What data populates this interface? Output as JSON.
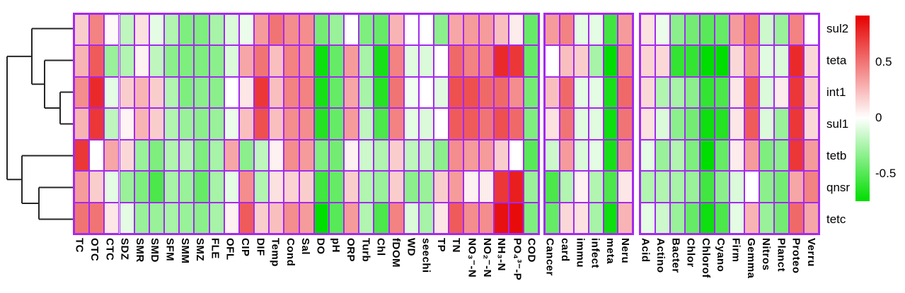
{
  "chart_data": {
    "type": "heatmap",
    "title": "",
    "rows": [
      "sul2",
      "teta",
      "int1",
      "sul1",
      "tetb",
      "qnsr",
      "tetc"
    ],
    "legend_position": "right",
    "colorbar": {
      "ticks": [
        "0.5",
        "0",
        "-0.5"
      ],
      "tick_values": [
        0.5,
        0,
        -0.5
      ],
      "max": 0.92,
      "min": -0.75,
      "color_positive": "#e60000",
      "color_zero": "#ffffff",
      "color_negative": "#00dd00"
    },
    "grid_border_color": "#a429f0",
    "dendrogram": {
      "line_color": "#262626",
      "nodes": [
        {
          "join": [
            "int1",
            "sul1"
          ],
          "x": 85
        },
        {
          "join": [
            "teta",
            "@0"
          ],
          "x": 63
        },
        {
          "join": [
            "sul2",
            "@1"
          ],
          "x": 45
        },
        {
          "join": [
            "qnsr",
            "tetc"
          ],
          "x": 55
        },
        {
          "join": [
            "tetb",
            "@3"
          ],
          "x": 31
        },
        {
          "join": [
            "@2",
            "@4"
          ],
          "x": 10
        }
      ]
    },
    "panels": [
      {
        "name": "antibiotics-and-environment",
        "columns": [
          "TC",
          "OTC",
          "CTC",
          "SDZ",
          "SMR",
          "SMD",
          "SFM",
          "SMM",
          "SMZ",
          "FLE",
          "OFL",
          "CIP",
          "DIF",
          "Temp",
          "Cond",
          "Sal",
          "DO",
          "pH",
          "ORP",
          "Turb",
          "Chl",
          "fDOM",
          "WD",
          "seechi",
          "TP",
          "TN",
          "NO₃⁻-N",
          "NO₂⁻-N",
          "NH₃-N",
          "PO₄³⁻-P",
          "COD"
        ],
        "values": [
          [
            0.18,
            0.45,
            0.02,
            -0.19,
            0.11,
            -0.08,
            -0.23,
            -0.38,
            -0.38,
            -0.26,
            -0.11,
            -0.06,
            0.36,
            0.5,
            0.41,
            0.41,
            -0.41,
            -0.3,
            0.0,
            -0.38,
            -0.45,
            0.27,
            0.0,
            0.0,
            -0.34,
            0.32,
            0.36,
            0.36,
            0.23,
            0.07,
            -0.45
          ],
          [
            0.27,
            0.59,
            -0.3,
            -0.23,
            0.05,
            -0.19,
            -0.34,
            -0.38,
            -0.38,
            -0.34,
            -0.11,
            0.32,
            0.5,
            0.23,
            0.45,
            0.41,
            -0.71,
            -0.45,
            0.36,
            -0.26,
            -0.68,
            0.45,
            -0.09,
            -0.11,
            0.0,
            0.54,
            0.45,
            0.45,
            0.77,
            0.72,
            -0.45
          ],
          [
            0.41,
            0.77,
            -0.08,
            0.18,
            0.27,
            0.18,
            -0.23,
            -0.38,
            -0.34,
            -0.34,
            0.0,
            0.09,
            0.72,
            0.23,
            0.45,
            0.45,
            -0.68,
            -0.45,
            0.32,
            -0.26,
            -0.64,
            0.5,
            -0.04,
            0.0,
            -0.09,
            0.63,
            0.63,
            0.54,
            0.54,
            0.41,
            -0.41
          ],
          [
            0.27,
            0.72,
            -0.19,
            0.04,
            0.27,
            0.18,
            -0.23,
            -0.3,
            -0.34,
            -0.3,
            -0.06,
            0.23,
            0.63,
            0.23,
            0.41,
            0.41,
            -0.64,
            -0.45,
            0.36,
            -0.19,
            -0.53,
            0.45,
            -0.08,
            -0.11,
            0.0,
            0.59,
            0.59,
            0.5,
            0.63,
            0.54,
            -0.38
          ],
          [
            0.72,
            0.0,
            0.32,
            0.14,
            -0.3,
            -0.38,
            -0.23,
            -0.23,
            -0.38,
            -0.26,
            0.32,
            -0.34,
            -0.19,
            0.05,
            0.41,
            0.36,
            -0.38,
            -0.41,
            0.05,
            -0.15,
            -0.23,
            0.18,
            -0.19,
            -0.19,
            -0.34,
            0.41,
            0.36,
            0.36,
            0.18,
            0.0,
            -0.49
          ],
          [
            0.36,
            0.18,
            -0.08,
            -0.3,
            -0.38,
            -0.53,
            -0.26,
            -0.3,
            -0.45,
            -0.26,
            -0.08,
            0.41,
            -0.23,
            0.11,
            0.16,
            0.18,
            -0.56,
            -0.45,
            0.18,
            -0.23,
            -0.3,
            0.18,
            -0.34,
            -0.3,
            0.18,
            0.36,
            0.05,
            0.07,
            0.72,
            0.81,
            -0.3
          ],
          [
            0.5,
            0.5,
            0.09,
            -0.08,
            -0.3,
            -0.3,
            -0.26,
            -0.3,
            -0.34,
            -0.26,
            0.05,
            0.59,
            0.18,
            0.23,
            0.41,
            0.36,
            -0.75,
            -0.49,
            0.36,
            -0.23,
            -0.53,
            0.45,
            -0.11,
            -0.26,
            0.09,
            0.59,
            0.41,
            0.41,
            0.86,
            0.88,
            -0.38
          ]
        ]
      },
      {
        "name": "disease-categories",
        "columns": [
          "Cancer",
          "card",
          "immu",
          "infect",
          "meta",
          "Neru"
        ],
        "values": [
          [
            0.36,
            0.45,
            -0.08,
            -0.08,
            -0.56,
            0.36
          ],
          [
            0.0,
            0.23,
            0.18,
            -0.26,
            -0.75,
            0.45
          ],
          [
            0.23,
            0.54,
            -0.08,
            -0.08,
            -0.68,
            0.54
          ],
          [
            0.11,
            0.5,
            -0.09,
            -0.09,
            -0.71,
            0.5
          ],
          [
            -0.15,
            0.36,
            -0.11,
            -0.08,
            -0.68,
            0.41
          ],
          [
            -0.53,
            -0.23,
            0.05,
            -0.23,
            -0.53,
            0.09
          ],
          [
            -0.45,
            0.14,
            0.11,
            -0.26,
            -0.71,
            0.27
          ]
        ]
      },
      {
        "name": "bacterial-phyla",
        "columns": [
          "Acid",
          "Actino",
          "Bacter",
          "Chlor",
          "Chlorof",
          "Cyano",
          "Firm",
          "Gemma",
          "Nitros",
          "Planct",
          "Proteo",
          "Verru"
        ],
        "values": [
          [
            0.11,
            -0.06,
            -0.34,
            -0.41,
            -0.49,
            -0.45,
            0.36,
            0.5,
            -0.15,
            -0.3,
            0.45,
            0.0
          ],
          [
            0.16,
            0.14,
            -0.6,
            -0.6,
            -0.75,
            -0.75,
            0.14,
            0.41,
            -0.09,
            -0.11,
            0.77,
            0.14
          ],
          [
            0.14,
            -0.23,
            -0.26,
            -0.34,
            -0.6,
            -0.53,
            0.09,
            0.59,
            -0.11,
            0.07,
            0.72,
            0.18
          ],
          [
            0.11,
            -0.11,
            -0.34,
            -0.41,
            -0.71,
            -0.64,
            0.09,
            0.59,
            -0.11,
            -0.3,
            0.72,
            0.14
          ],
          [
            -0.08,
            -0.3,
            -0.23,
            -0.38,
            -0.75,
            -0.45,
            0.07,
            0.36,
            -0.38,
            -0.34,
            0.72,
            0.36
          ],
          [
            -0.23,
            -0.23,
            -0.26,
            -0.3,
            -0.56,
            -0.34,
            -0.11,
            0.0,
            -0.34,
            -0.41,
            0.32,
            0.45
          ],
          [
            -0.08,
            -0.15,
            -0.3,
            -0.45,
            -0.71,
            -0.53,
            -0.08,
            0.27,
            -0.3,
            -0.41,
            0.54,
            0.32
          ]
        ]
      }
    ]
  }
}
